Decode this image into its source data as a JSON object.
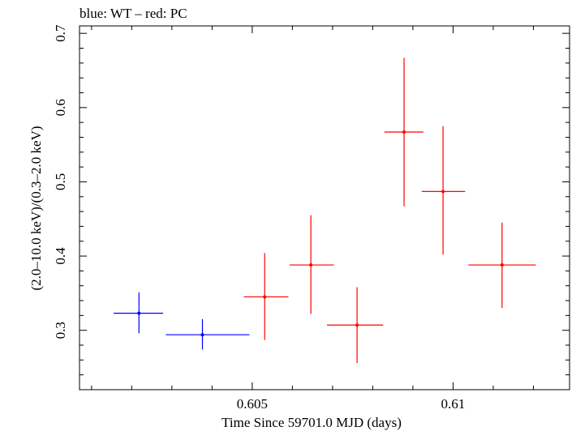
{
  "chart_data": {
    "type": "scatter",
    "title": "blue: WT – red: PC",
    "xlabel": "Time Since 59701.0 MJD (days)",
    "ylabel": "(2.0–10.0 keV)/(0.3–2.0 keV)",
    "xlim": [
      0.6007,
      0.6129
    ],
    "ylim": [
      0.22,
      0.71
    ],
    "x_ticks": [
      0.605,
      0.61
    ],
    "x_tick_labels": [
      "0.605",
      "0.61"
    ],
    "y_ticks": [
      0.3,
      0.4,
      0.5,
      0.6,
      0.7
    ],
    "y_tick_labels": [
      "0.3",
      "0.4",
      "0.5",
      "0.6",
      "0.7"
    ],
    "grid": false,
    "series": [
      {
        "name": "WT",
        "color": "#0000ff",
        "points": [
          {
            "x": 0.60218,
            "xlo": 0.60155,
            "xhi": 0.60278,
            "y": 0.323,
            "ylo": 0.296,
            "yhi": 0.351
          },
          {
            "x": 0.60376,
            "xlo": 0.60285,
            "xhi": 0.60493,
            "y": 0.294,
            "ylo": 0.274,
            "yhi": 0.315
          }
        ]
      },
      {
        "name": "PC",
        "color": "#ff0000",
        "points": [
          {
            "x": 0.60531,
            "xlo": 0.60479,
            "xhi": 0.6059,
            "y": 0.345,
            "ylo": 0.287,
            "yhi": 0.404
          },
          {
            "x": 0.60646,
            "xlo": 0.60593,
            "xhi": 0.60703,
            "y": 0.388,
            "ylo": 0.322,
            "yhi": 0.455
          },
          {
            "x": 0.60761,
            "xlo": 0.60686,
            "xhi": 0.60826,
            "y": 0.307,
            "ylo": 0.256,
            "yhi": 0.358
          },
          {
            "x": 0.60878,
            "xlo": 0.60829,
            "xhi": 0.60926,
            "y": 0.567,
            "ylo": 0.467,
            "yhi": 0.667
          },
          {
            "x": 0.60975,
            "xlo": 0.60922,
            "xhi": 0.6103,
            "y": 0.487,
            "ylo": 0.402,
            "yhi": 0.575
          },
          {
            "x": 0.61122,
            "xlo": 0.61038,
            "xhi": 0.61206,
            "y": 0.388,
            "ylo": 0.33,
            "yhi": 0.445
          }
        ]
      }
    ]
  }
}
